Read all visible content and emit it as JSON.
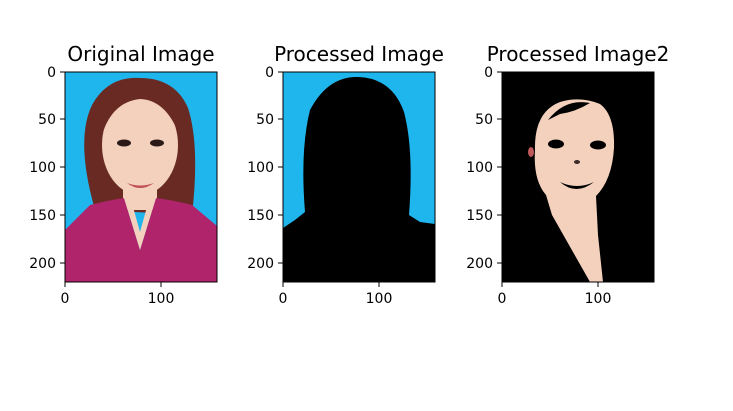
{
  "chart_data": [
    {
      "type": "image",
      "title": "Original Image",
      "xticks": [
        0,
        100
      ],
      "yticks": [
        0,
        50,
        100,
        150,
        200
      ],
      "xlim": [
        0,
        158
      ],
      "ylim": [
        220,
        0
      ],
      "content": "portrait photo, blue background"
    },
    {
      "type": "image",
      "title": "Processed Image",
      "xticks": [
        0,
        100
      ],
      "yticks": [
        0,
        50,
        100,
        150,
        200
      ],
      "xlim": [
        0,
        158
      ],
      "ylim": [
        220,
        0
      ],
      "content": "black person silhouette on blue background"
    },
    {
      "type": "image",
      "title": "Processed Image2",
      "xticks": [
        0,
        100
      ],
      "yticks": [
        0,
        50,
        100,
        150,
        200
      ],
      "xlim": [
        0,
        158
      ],
      "ylim": [
        220,
        0
      ],
      "content": "segmented face and neck on black background"
    }
  ],
  "colors": {
    "background_blue": "#1fb6ee",
    "jacket_magenta": "#b0246c",
    "hair_brown": "#6a2a24",
    "skin": "#f3d1bd",
    "black": "#000000"
  }
}
